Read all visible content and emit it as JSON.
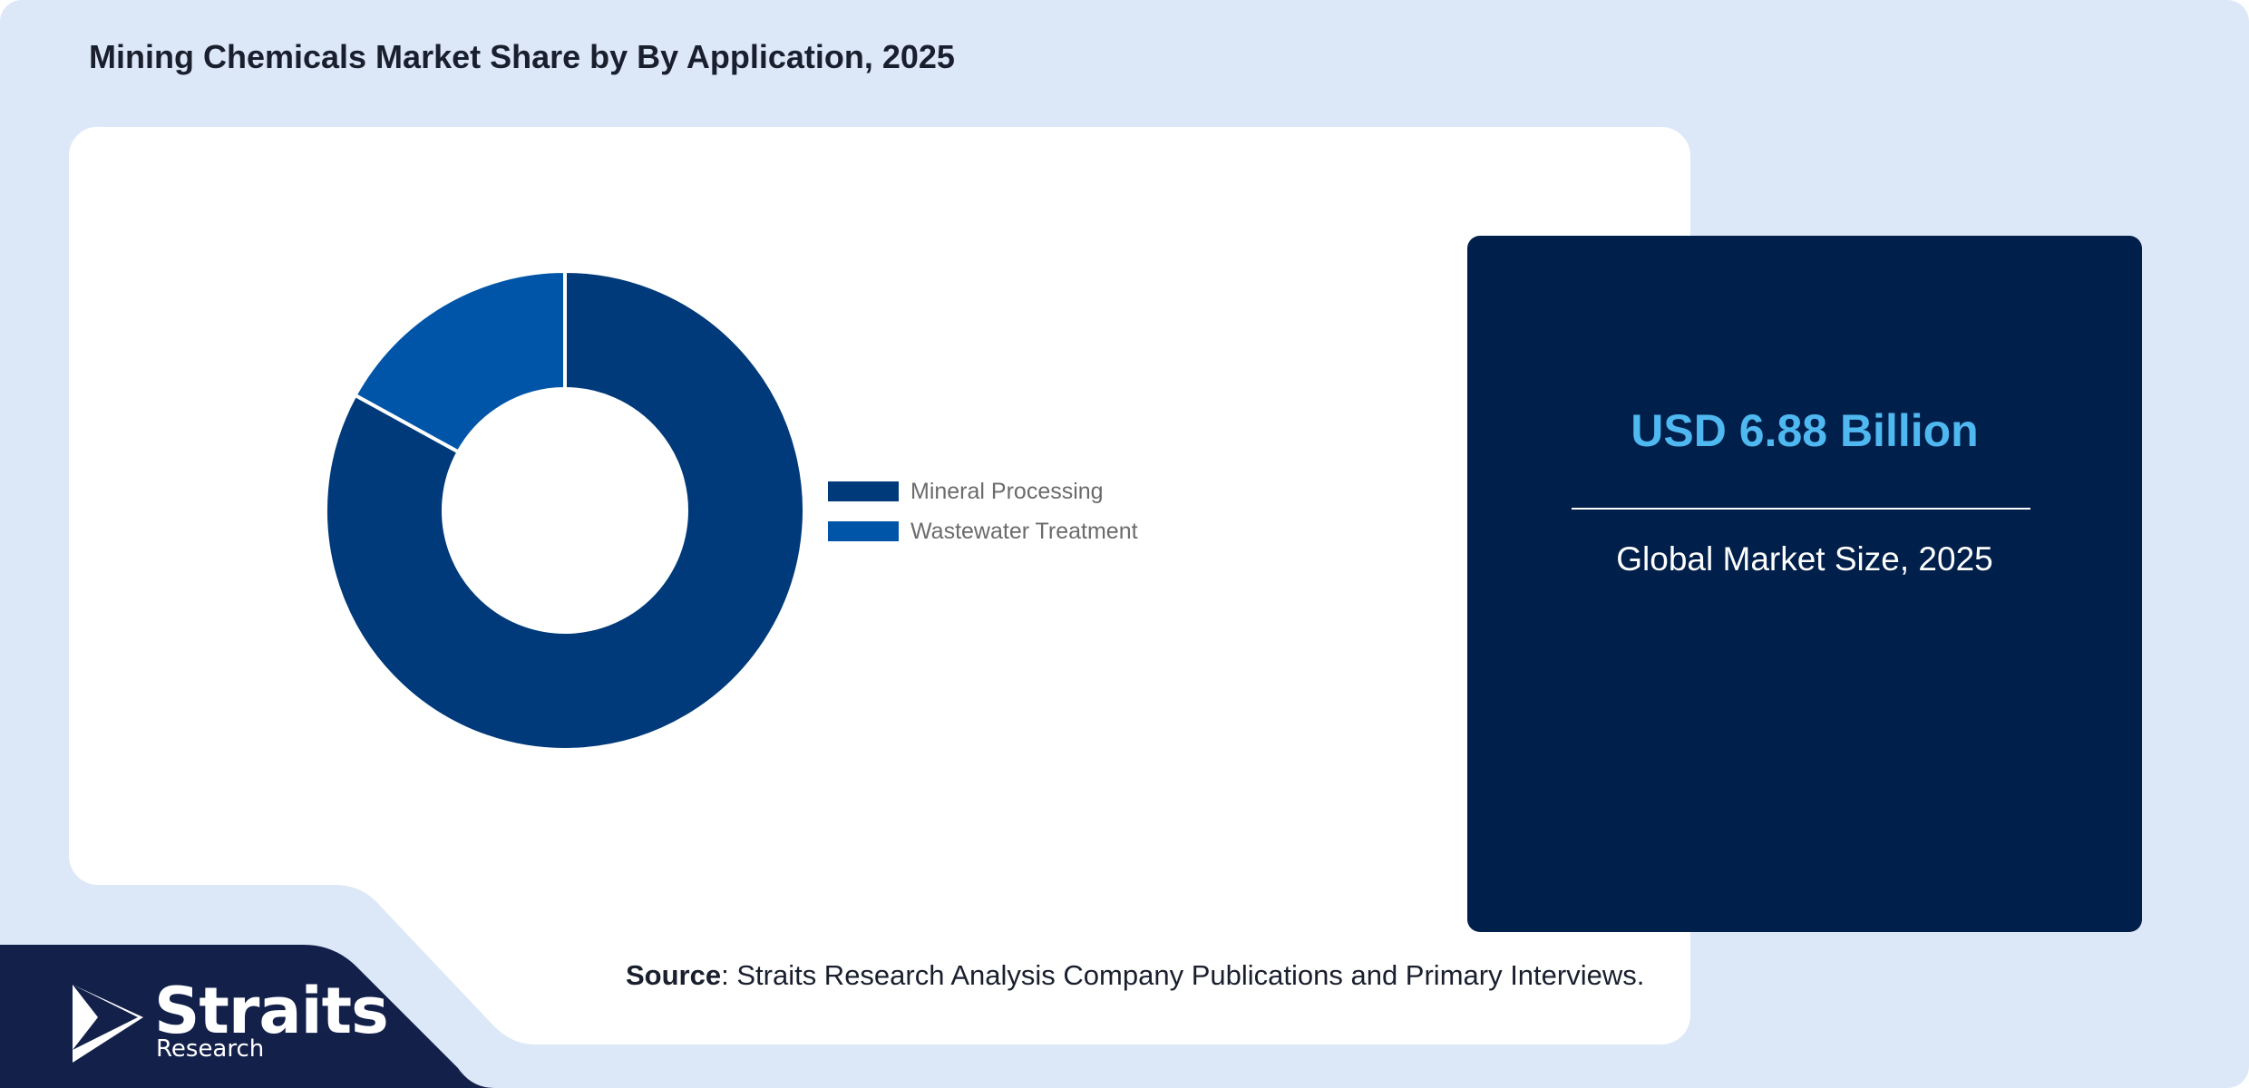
{
  "page": {
    "title": "Mining Chemicals Market Share by By Application, 2025",
    "source_label": "Source",
    "source_text": ": Straits Research Analysis Company Publications and Primary Interviews."
  },
  "stat": {
    "value": "USD 6.88 Billion",
    "label": "Global Market Size, 2025"
  },
  "brand": {
    "name": "Straits",
    "sub": "Research",
    "logo_icon": "straits-chevron-icon"
  },
  "colors": {
    "background": "#dce8f8",
    "card": "#ffffff",
    "panel": "#001f4a",
    "accent_value": "#4fb8f0",
    "footer": "#13204a"
  },
  "chart_data": {
    "type": "pie",
    "style": "donut",
    "title": "",
    "categories": [
      "Mineral Processing",
      "Wastewater Treatment"
    ],
    "values": [
      83,
      17
    ],
    "colors": [
      "#003a7a",
      "#0055a8"
    ],
    "legend_position": "right"
  }
}
